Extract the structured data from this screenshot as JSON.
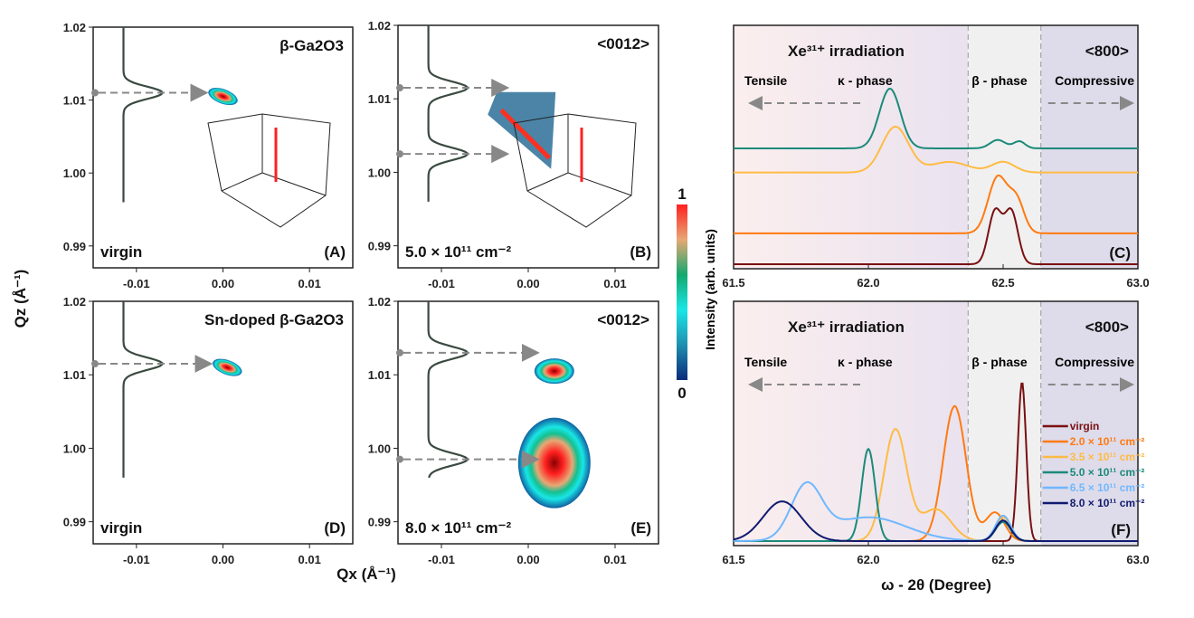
{
  "colorbar": {
    "max_label": "1",
    "min_label": "0",
    "label": "Intensity (arb. units)",
    "stops": [
      "#0b2a7a",
      "#1f8fb0",
      "#19e6e6",
      "#13a86e",
      "#e7a874",
      "#ff2020"
    ]
  },
  "axes": {
    "qz_label": "Qz (Å⁻¹)",
    "qx_label": "Qx (Å⁻¹)",
    "xrd_ylabel": "Intensity (arb. units)",
    "xrd_xlabel": "ω - 2θ (Degree)"
  },
  "chart_data": [
    {
      "type": "heatmap",
      "panel": "A",
      "title": "β-Ga2O3",
      "corner_label": "virgin",
      "xlim": [
        -0.015,
        0.015
      ],
      "ylim": [
        0.987,
        1.02
      ],
      "xticks": [
        "-0.01",
        "0.00",
        "0.01"
      ],
      "yticks": [
        "0.99",
        "1.00",
        "1.01",
        "1.02"
      ],
      "peaks_qz": [
        1.011
      ],
      "spots": [
        {
          "qx": 0.0,
          "qz": 1.0105,
          "shape": "ellipse"
        }
      ],
      "inset": "3D surface"
    },
    {
      "type": "heatmap",
      "panel": "B",
      "title": "<0012>",
      "corner_label": "5.0 × 10¹¹ cm⁻²",
      "xlim": [
        -0.015,
        0.015
      ],
      "ylim": [
        0.987,
        1.02
      ],
      "xticks": [
        "-0.01",
        "0.00",
        "0.01"
      ],
      "yticks": [
        "0.99",
        "1.00",
        "1.01",
        "1.02"
      ],
      "peaks_qz": [
        1.0115,
        1.0025
      ],
      "spots": [
        {
          "qx": -0.0005,
          "qz": 1.006,
          "shape": "streak"
        }
      ],
      "inset": "3D surface"
    },
    {
      "type": "heatmap",
      "panel": "D",
      "title": "Sn-doped β-Ga2O3",
      "corner_label": "virgin",
      "xlim": [
        -0.015,
        0.015
      ],
      "ylim": [
        0.987,
        1.02
      ],
      "xticks": [
        "-0.01",
        "0.00",
        "0.01"
      ],
      "yticks": [
        "0.99",
        "1.00",
        "1.01",
        "1.02"
      ],
      "peaks_qz": [
        1.0115
      ],
      "spots": [
        {
          "qx": 0.0005,
          "qz": 1.011,
          "shape": "ellipse"
        }
      ]
    },
    {
      "type": "heatmap",
      "panel": "E",
      "title": "<0012>",
      "corner_label": "8.0 × 10¹¹ cm⁻²",
      "xlim": [
        -0.015,
        0.015
      ],
      "ylim": [
        0.987,
        1.02
      ],
      "xticks": [
        "-0.01",
        "0.00",
        "0.01"
      ],
      "yticks": [
        "0.99",
        "1.00",
        "1.01",
        "1.02"
      ],
      "peaks_qz": [
        1.013,
        0.9985
      ],
      "spots": [
        {
          "qx": 0.003,
          "qz": 1.0105,
          "shape": "top-lobe"
        },
        {
          "qx": 0.003,
          "qz": 0.998,
          "shape": "bottom-lobe"
        }
      ]
    },
    {
      "type": "line",
      "panel": "C",
      "title": "Xe³¹⁺ irradiation",
      "reflection": "<800>",
      "xlim": [
        61.5,
        63.0
      ],
      "xticks": [
        "61.5",
        "62.0",
        "62.5",
        "63.0"
      ],
      "annotations": [
        "Tensile",
        "κ - phase",
        "β - phase",
        "Compressive"
      ],
      "beta_region": [
        62.37,
        62.64
      ],
      "series": [
        {
          "name": "virgin",
          "color": "#7a1010",
          "offset": 0.0,
          "peaks": [
            [
              62.47,
              0.75,
              0.035
            ],
            [
              62.53,
              0.75,
              0.035
            ]
          ]
        },
        {
          "name": "2.0 × 10¹¹ cm⁻²",
          "color": "#ff7a10",
          "offset": 0.32,
          "peaks": [
            [
              62.48,
              0.8,
              0.05
            ],
            [
              62.55,
              0.45,
              0.04
            ]
          ]
        },
        {
          "name": "3.5 × 10¹¹ cm⁻²",
          "color": "#ffbb44",
          "offset": 0.95,
          "peaks": [
            [
              62.1,
              0.65,
              0.07
            ],
            [
              62.3,
              0.15,
              0.1
            ],
            [
              62.5,
              0.15,
              0.06
            ]
          ]
        },
        {
          "name": "5.0 × 10¹¹ cm⁻²",
          "color": "#1b8a7a",
          "offset": 1.2,
          "peaks": [
            [
              62.08,
              0.85,
              0.055
            ],
            [
              62.48,
              0.12,
              0.04
            ],
            [
              62.56,
              0.1,
              0.03
            ]
          ]
        }
      ]
    },
    {
      "type": "line",
      "panel": "F",
      "title": "Xe³¹⁺ irradiation",
      "reflection": "<800>",
      "xlim": [
        61.5,
        63.0
      ],
      "xticks": [
        "61.5",
        "62.0",
        "62.5",
        "63.0"
      ],
      "annotations": [
        "Tensile",
        "κ - phase",
        "β - phase",
        "Compressive"
      ],
      "beta_region": [
        62.37,
        62.64
      ],
      "legend": "right",
      "series": [
        {
          "name": "virgin",
          "color": "#7a1010",
          "peaks": [
            [
              62.57,
              1.0,
              0.022
            ]
          ]
        },
        {
          "name": "2.0 × 10¹¹ cm⁻²",
          "color": "#ff7a10",
          "peaks": [
            [
              62.32,
              0.85,
              0.06
            ],
            [
              62.47,
              0.18,
              0.05
            ]
          ]
        },
        {
          "name": "3.5 × 10¹¹ cm⁻²",
          "color": "#ffbb44",
          "peaks": [
            [
              62.1,
              0.7,
              0.06
            ],
            [
              62.25,
              0.2,
              0.08
            ],
            [
              62.5,
              0.15,
              0.04
            ]
          ]
        },
        {
          "name": "5.0 × 10¹¹ cm⁻²",
          "color": "#1b8a7a",
          "peaks": [
            [
              62.0,
              0.58,
              0.035
            ],
            [
              62.5,
              0.12,
              0.04
            ]
          ]
        },
        {
          "name": "6.5 × 10¹¹ cm⁻²",
          "color": "#6fb8ff",
          "peaks": [
            [
              61.77,
              0.33,
              0.08
            ],
            [
              62.0,
              0.15,
              0.2
            ],
            [
              62.5,
              0.16,
              0.04
            ]
          ]
        },
        {
          "name": "8.0 × 10¹¹ cm⁻²",
          "color": "#101a70",
          "peaks": [
            [
              61.68,
              0.25,
              0.1
            ],
            [
              62.5,
              0.13,
              0.04
            ]
          ]
        }
      ]
    }
  ]
}
